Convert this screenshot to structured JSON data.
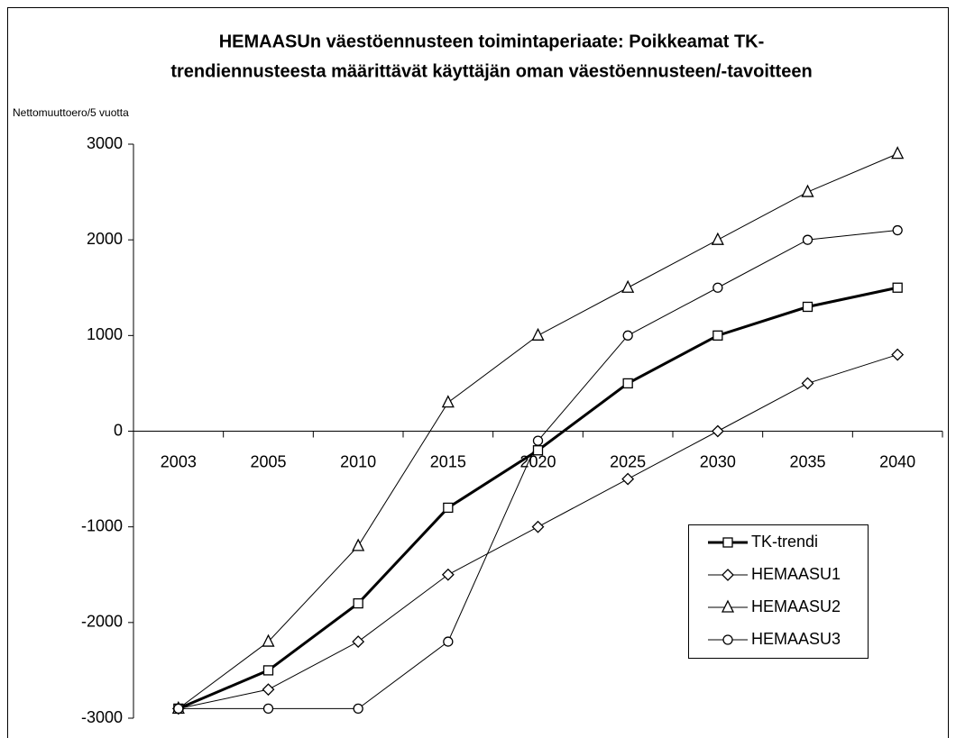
{
  "chart_data": {
    "type": "line",
    "title": [
      "HEMAASUn väestöennusteen toimintaperiaate: Poikkeamat TK-",
      "trendiennusteesta määrittävät käyttäjän oman väestöennusteen/-tavoitteen"
    ],
    "y_label": "Nettomuuttoero/5 vuotta",
    "categories": [
      "2003",
      "2005",
      "2010",
      "2015",
      "2020",
      "2025",
      "2030",
      "2035",
      "2040"
    ],
    "series": [
      {
        "name": "TK-trendi",
        "color": "#000000",
        "marker": "square",
        "line_width": 3,
        "values": [
          -2900,
          -2500,
          -1800,
          -800,
          -200,
          500,
          1000,
          1300,
          1500
        ]
      },
      {
        "name": "HEMAASU1",
        "color": "#000000",
        "marker": "diamond",
        "line_width": 1,
        "values": [
          -2900,
          -2700,
          -2200,
          -1500,
          -1000,
          -500,
          0,
          500,
          800
        ]
      },
      {
        "name": "HEMAASU2",
        "color": "#000000",
        "marker": "triangle",
        "line_width": 1,
        "values": [
          -2900,
          -2200,
          -1200,
          300,
          1000,
          1500,
          2000,
          2500,
          2900
        ]
      },
      {
        "name": "HEMAASU3",
        "color": "#000000",
        "marker": "circle",
        "line_width": 1,
        "values": [
          -2900,
          -2900,
          -2900,
          -2200,
          -100,
          1000,
          1500,
          2000,
          2100
        ]
      }
    ],
    "ylim": [
      -3000,
      3000
    ],
    "yticks": [
      3000,
      2000,
      1000,
      0,
      -1000,
      -2000,
      -3000
    ],
    "grid": false,
    "legend": "lower right"
  }
}
